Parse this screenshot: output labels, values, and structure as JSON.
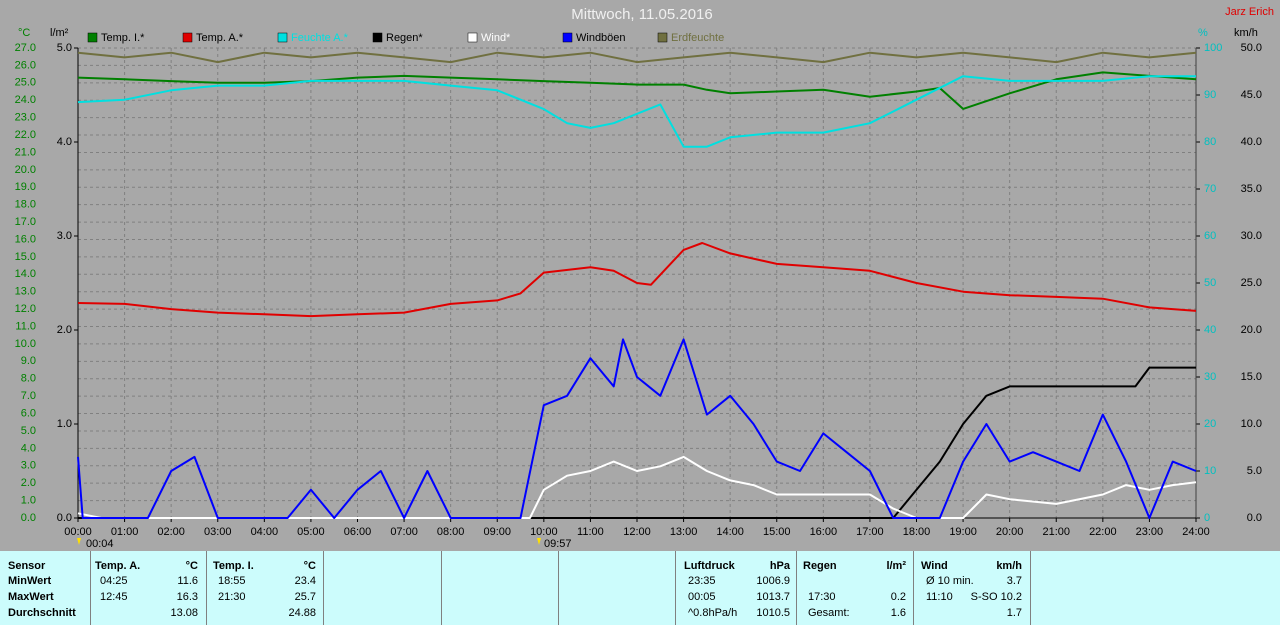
{
  "chart_data": {
    "type": "line",
    "title": "Mittwoch, 11.05.2016",
    "author": "Jarz Erich",
    "ylabel": "°C",
    "y2label": "l/m²",
    "y3label": "%",
    "y4label": "km/h",
    "grid": true,
    "xlim": [
      0,
      24
    ],
    "xticks": [
      {
        "value": 0,
        "label": "00:00"
      },
      {
        "value": 1,
        "label": "01:00"
      },
      {
        "value": 2,
        "label": "02:00"
      },
      {
        "value": 3,
        "label": "03:00"
      },
      {
        "value": 4,
        "label": "04:00"
      },
      {
        "value": 5,
        "label": "05:00"
      },
      {
        "value": 6,
        "label": "06:00"
      },
      {
        "value": 7,
        "label": "07:00"
      },
      {
        "value": 8,
        "label": "08:00"
      },
      {
        "value": 9,
        "label": "09:00"
      },
      {
        "value": 10,
        "label": "10:00"
      },
      {
        "value": 11,
        "label": "11:00"
      },
      {
        "value": 12,
        "label": "12:00"
      },
      {
        "value": 13,
        "label": "13:00"
      },
      {
        "value": 14,
        "label": "14:00"
      },
      {
        "value": 15,
        "label": "15:00"
      },
      {
        "value": 16,
        "label": "16:00"
      },
      {
        "value": 17,
        "label": "17:00"
      },
      {
        "value": 18,
        "label": "18:00"
      },
      {
        "value": 19,
        "label": "19:00"
      },
      {
        "value": 20,
        "label": "20:00"
      },
      {
        "value": 21,
        "label": "21:00"
      },
      {
        "value": 22,
        "label": "22:00"
      },
      {
        "value": 23,
        "label": "23:00"
      },
      {
        "value": 24,
        "label": "24:00"
      }
    ],
    "ylim": [
      0,
      27
    ],
    "yticks": [
      {
        "value": 0,
        "label": "0.0"
      },
      {
        "value": 1,
        "label": "1.0"
      },
      {
        "value": 2,
        "label": "2.0"
      },
      {
        "value": 3,
        "label": "3.0"
      },
      {
        "value": 4,
        "label": "4.0"
      },
      {
        "value": 5,
        "label": "5.0"
      },
      {
        "value": 6,
        "label": "6.0"
      },
      {
        "value": 7,
        "label": "7.0"
      },
      {
        "value": 8,
        "label": "8.0"
      },
      {
        "value": 9,
        "label": "9.0"
      },
      {
        "value": 10,
        "label": "10.0"
      },
      {
        "value": 11,
        "label": "11.0"
      },
      {
        "value": 12,
        "label": "12.0"
      },
      {
        "value": 13,
        "label": "13.0"
      },
      {
        "value": 14,
        "label": "14.0"
      },
      {
        "value": 15,
        "label": "15.0"
      },
      {
        "value": 16,
        "label": "16.0"
      },
      {
        "value": 17,
        "label": "17.0"
      },
      {
        "value": 18,
        "label": "18.0"
      },
      {
        "value": 19,
        "label": "19.0"
      },
      {
        "value": 20,
        "label": "20.0"
      },
      {
        "value": 21,
        "label": "21.0"
      },
      {
        "value": 22,
        "label": "22.0"
      },
      {
        "value": 23,
        "label": "23.0"
      },
      {
        "value": 24,
        "label": "24.0"
      },
      {
        "value": 25,
        "label": "25.0"
      },
      {
        "value": 26,
        "label": "26.0"
      },
      {
        "value": 27,
        "label": "27.0"
      }
    ],
    "y2lim": [
      0,
      5
    ],
    "y2ticks": [
      {
        "value": 0,
        "label": "0.0"
      },
      {
        "value": 1,
        "label": "1.0"
      },
      {
        "value": 2,
        "label": "2.0"
      },
      {
        "value": 3,
        "label": "3.0"
      },
      {
        "value": 4,
        "label": "4.0"
      },
      {
        "value": 5,
        "label": "5.0"
      }
    ],
    "y3lim": [
      0,
      100
    ],
    "y3ticks": [
      0,
      10,
      20,
      30,
      40,
      50,
      60,
      70,
      80,
      90,
      100
    ],
    "y4lim": [
      0,
      50
    ],
    "y4ticks": [
      {
        "value": 0,
        "label": "0.0"
      },
      {
        "value": 5,
        "label": "5.0"
      },
      {
        "value": 10,
        "label": "10.0"
      },
      {
        "value": 15,
        "label": "15.0"
      },
      {
        "value": 20,
        "label": "20.0"
      },
      {
        "value": 25,
        "label": "25.0"
      },
      {
        "value": 30,
        "label": "30.0"
      },
      {
        "value": 35,
        "label": "35.0"
      },
      {
        "value": 40,
        "label": "40.0"
      },
      {
        "value": 45,
        "label": "45.0"
      },
      {
        "value": 50,
        "label": "50.0"
      }
    ],
    "annotations": [
      "00:04",
      "09:57"
    ],
    "series": [
      {
        "name": "Temp. I.*",
        "color": "#008000",
        "axis": "y",
        "x": [
          0,
          1,
          2,
          3,
          4,
          5,
          6,
          7,
          8,
          9,
          10,
          11,
          12,
          13,
          13.5,
          14,
          15,
          16,
          17,
          18,
          18.5,
          19,
          20,
          21,
          22,
          23,
          24
        ],
        "values": [
          25.3,
          25.2,
          25.1,
          25.0,
          25.0,
          25.1,
          25.3,
          25.4,
          25.3,
          25.2,
          25.1,
          25.0,
          24.9,
          24.9,
          24.6,
          24.4,
          24.5,
          24.6,
          24.2,
          24.5,
          24.7,
          23.5,
          24.4,
          25.2,
          25.6,
          25.4,
          25.2
        ]
      },
      {
        "name": "Temp. A.*",
        "color": "#e00000",
        "axis": "y",
        "x": [
          0,
          1,
          2,
          3,
          4,
          5,
          6,
          7,
          8,
          9,
          9.5,
          10,
          11,
          11.5,
          12,
          12.3,
          13,
          13.4,
          14,
          15,
          16,
          17,
          18,
          19,
          20,
          21,
          22,
          23,
          24
        ],
        "values": [
          12.35,
          12.3,
          12.0,
          11.8,
          11.7,
          11.6,
          11.7,
          11.8,
          12.3,
          12.5,
          12.9,
          14.1,
          14.4,
          14.2,
          13.5,
          13.4,
          15.4,
          15.8,
          15.2,
          14.6,
          14.4,
          14.2,
          13.5,
          13.0,
          12.8,
          12.7,
          12.6,
          12.1,
          11.9
        ]
      },
      {
        "name": "Feuchte A.*",
        "color": "#00e0e0",
        "axis": "y3",
        "x": [
          0,
          1,
          2,
          3,
          4,
          5,
          6,
          7,
          8,
          9,
          10,
          10.5,
          11,
          11.5,
          12,
          12.5,
          13,
          13.5,
          14,
          15,
          16,
          17,
          18,
          19,
          20,
          21,
          22,
          23,
          24
        ],
        "values": [
          88.5,
          89,
          91,
          92,
          92,
          93,
          93,
          93,
          92,
          91,
          87,
          84,
          83,
          84,
          86,
          88,
          79,
          79,
          81,
          82,
          82,
          84,
          89,
          94,
          93,
          93,
          93,
          94,
          94
        ]
      },
      {
        "name": "Regen*",
        "color": "#000000",
        "axis": "y2",
        "x": [
          0,
          17.5,
          18,
          18.5,
          19,
          19.5,
          20,
          21,
          22,
          22.7,
          23,
          24
        ],
        "values": [
          0,
          0,
          0.3,
          0.6,
          1.0,
          1.3,
          1.4,
          1.4,
          1.4,
          1.4,
          1.6,
          1.6
        ]
      },
      {
        "name": "Wind*",
        "color": "#ffffff",
        "axis": "y4",
        "x": [
          0,
          0.5,
          1,
          9.7,
          10,
          10.5,
          11,
          11.5,
          12,
          12.5,
          13,
          13.5,
          14,
          14.5,
          15,
          16,
          17,
          17.5,
          18,
          19,
          19.5,
          20,
          21,
          22,
          22.5,
          23,
          23.5,
          24
        ],
        "values": [
          0.5,
          0,
          0,
          0,
          3,
          4.5,
          5,
          6,
          5,
          5.5,
          6.5,
          5,
          4,
          3.5,
          2.5,
          2.5,
          2.5,
          1,
          0,
          0,
          2.5,
          2,
          1.5,
          2.5,
          3.5,
          3,
          3.5,
          3.8
        ]
      },
      {
        "name": "Windböen",
        "color": "#0000ff",
        "axis": "y4",
        "x": [
          0,
          0.1,
          0.5,
          1,
          1.5,
          2,
          2.5,
          3,
          3.5,
          4,
          4.5,
          5,
          5.5,
          6,
          6.5,
          7,
          7.5,
          8,
          8.5,
          9,
          9.5,
          10,
          10.5,
          11,
          11.5,
          11.7,
          12,
          12.5,
          13,
          13.5,
          14,
          14.5,
          15,
          15.5,
          16,
          16.5,
          17,
          17.5,
          18,
          18.5,
          19,
          19.5,
          20,
          20.5,
          21,
          21.5,
          22,
          22.5,
          23,
          23.5,
          24
        ],
        "values": [
          6.5,
          0,
          0,
          0,
          0,
          5,
          6.5,
          0,
          0,
          0,
          0,
          3,
          0,
          3,
          5,
          0,
          5,
          0,
          0,
          0,
          0,
          12,
          13,
          17,
          14,
          19,
          15,
          13,
          19,
          11,
          13,
          10,
          6,
          5,
          9,
          7,
          5,
          0,
          0,
          0,
          6,
          10,
          6,
          7,
          6,
          5,
          11,
          6,
          0,
          6,
          5
        ]
      },
      {
        "name": "Erdfeuchte",
        "color": "#707040",
        "axis": "y3",
        "x": [
          0,
          1,
          2,
          3,
          4,
          5,
          6,
          7,
          8,
          9,
          10,
          11,
          12,
          13,
          14,
          15,
          16,
          17,
          18,
          19,
          20,
          21,
          22,
          23,
          24
        ],
        "values": [
          99,
          98,
          99,
          97,
          99,
          98,
          99,
          98,
          97,
          99,
          98,
          99,
          97,
          98,
          99,
          98,
          97,
          99,
          98,
          99,
          98,
          97,
          99,
          98,
          99
        ]
      }
    ]
  },
  "stats": {
    "header": [
      "Sensor",
      "Temp. A.",
      "°C",
      "Temp. I.",
      "°C",
      "Luftdruck",
      "hPa",
      "Regen",
      "l/m²",
      "Wind",
      "km/h"
    ],
    "rows": [
      [
        "MinWert",
        "04:25",
        "11.6",
        "18:55",
        "23.4",
        "23:35",
        "1006.9",
        null,
        null,
        "Ø 10 min.",
        "3.7"
      ],
      [
        "MaxWert",
        "12:45",
        "16.3",
        "21:30",
        "25.7",
        "00:05",
        "1013.7",
        "17:30",
        "0.2",
        "11:10",
        "S-SO 10.2"
      ],
      [
        "Durchschnitt",
        null,
        "13.08",
        null,
        "24.88",
        "^0.8hPa/h",
        "1010.5",
        "Gesamt:",
        "1.6",
        null,
        "1.7"
      ]
    ]
  }
}
